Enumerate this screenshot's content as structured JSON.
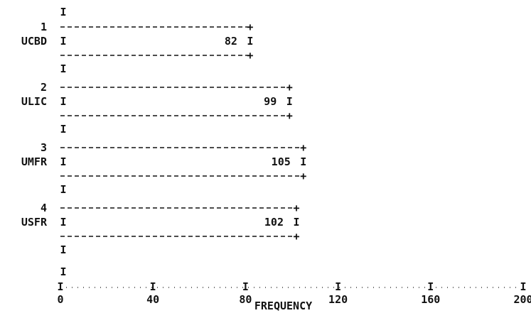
{
  "chart_data": {
    "type": "bar",
    "orientation": "horizontal",
    "categories": [
      "UCBD",
      "ULIC",
      "UMFR",
      "USFR"
    ],
    "category_numbers": [
      "1",
      "2",
      "3",
      "4"
    ],
    "values": [
      82,
      99,
      105,
      102
    ],
    "value_labels": [
      "82",
      "99",
      "105",
      "102"
    ],
    "xlabel": "FREQUENCY",
    "xlim": [
      0,
      200
    ],
    "x_ticks": [
      0,
      40,
      80,
      120,
      160,
      200
    ],
    "x_tick_labels": [
      "0",
      "40",
      "80",
      "120",
      "160",
      "200"
    ],
    "grid": false,
    "style": "ascii-printout",
    "bar_marker": "I"
  }
}
